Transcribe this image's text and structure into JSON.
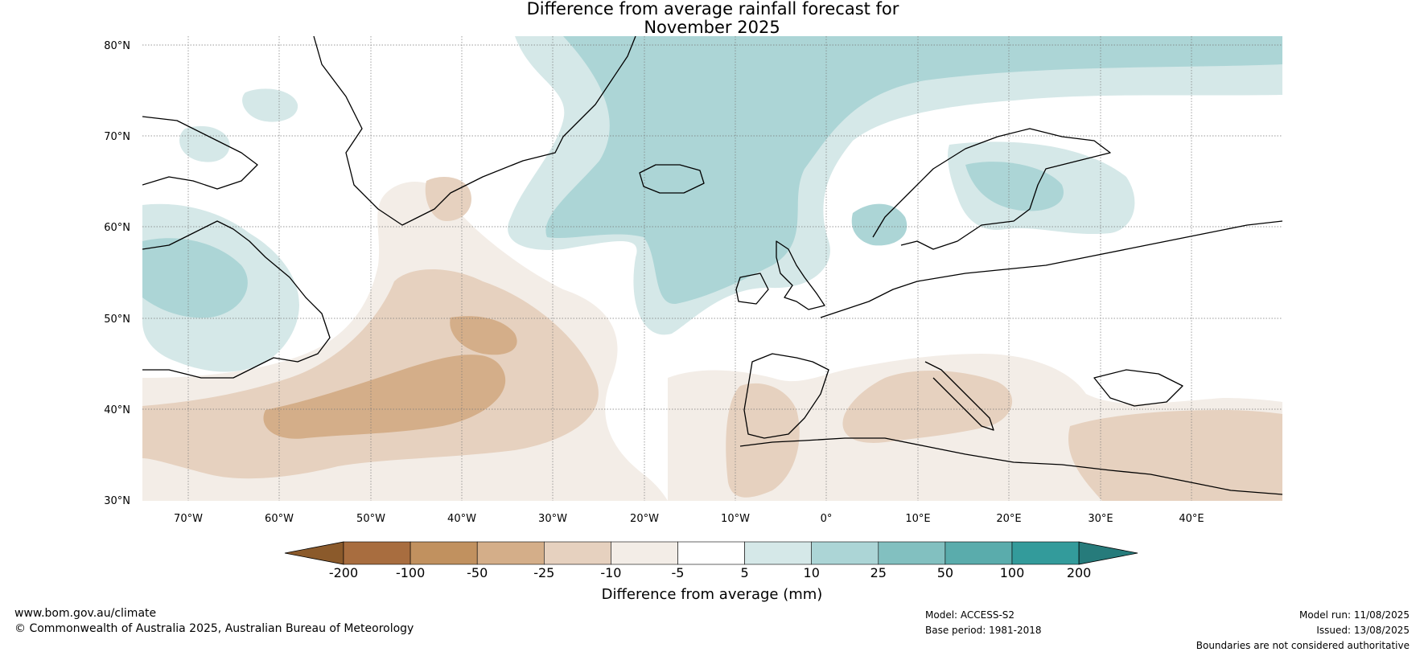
{
  "title": [
    "Difference from average rainfall forecast for",
    "November 2025"
  ],
  "map": {
    "lat_ticks": [
      "80°N",
      "70°N",
      "60°N",
      "50°N",
      "40°N",
      "30°N"
    ],
    "lon_ticks": [
      "70°W",
      "60°W",
      "50°W",
      "40°W",
      "30°W",
      "20°W",
      "10°W",
      "0°",
      "10°E",
      "20°E",
      "30°E",
      "40°E"
    ],
    "extent": {
      "lon_min": -75,
      "lon_max": 50,
      "lat_min": 30,
      "lat_max": 81
    }
  },
  "colorbar": {
    "label": "Difference from average (mm)",
    "tick_labels": [
      "-200",
      "-100",
      "-50",
      "-25",
      "-10",
      "-5",
      "5",
      "10",
      "25",
      "50",
      "100",
      "200"
    ],
    "colors": [
      "#8b5a2b",
      "#a86d3f",
      "#c1915f",
      "#d4ae89",
      "#e6d1bf",
      "#f3ede7",
      "#ffffff",
      "#d5e8e8",
      "#acd5d6",
      "#82c0c0",
      "#5aacac",
      "#339b9b",
      "#267b7b"
    ]
  },
  "footer": {
    "url": "www.bom.gov.au/climate",
    "copyright": "© Commonwealth of Australia 2025, Australian Bureau of Meteorology",
    "model": "Model: ACCESS-S2",
    "base_period": "Base period: 1981-2018",
    "model_run": "Model run: 11/08/2025",
    "issued": "Issued: 13/08/2025",
    "disclaimer": "Boundaries are not considered authoritative"
  }
}
